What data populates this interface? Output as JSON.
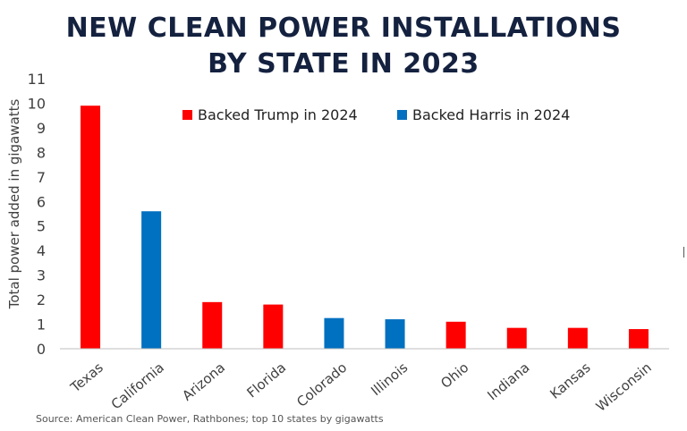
{
  "title": {
    "line1": "NEW CLEAN POWER INSTALLATIONS",
    "line2": "BY STATE IN 2023"
  },
  "source": "Source: American Clean Power, Rathbones; top 10 states by gigawatts",
  "colors": {
    "trump": "#ff0000",
    "harris": "#0070c0",
    "axis": "#404040",
    "title": "#14213f"
  },
  "chart_data": {
    "type": "bar",
    "title": "NEW CLEAN POWER INSTALLATIONS BY STATE IN 2023",
    "xlabel": "",
    "ylabel": "Total power added in gigawatts",
    "ylim": [
      0,
      11
    ],
    "yticks": [
      0,
      1,
      2,
      3,
      4,
      5,
      6,
      7,
      8,
      9,
      10,
      11
    ],
    "categories": [
      "Texas",
      "California",
      "Arizona",
      "Florida",
      "Colorado",
      "Illinois",
      "Ohio",
      "Indiana",
      "Kansas",
      "Wisconsin"
    ],
    "values": [
      9.9,
      5.6,
      1.9,
      1.8,
      1.25,
      1.2,
      1.1,
      0.85,
      0.85,
      0.8
    ],
    "groups": [
      "trump",
      "harris",
      "trump",
      "trump",
      "harris",
      "harris",
      "trump",
      "trump",
      "trump",
      "trump"
    ],
    "legend": [
      {
        "key": "trump",
        "label": "Backed Trump in 2024"
      },
      {
        "key": "harris",
        "label": "Backed Harris in 2024"
      }
    ],
    "legend_position": "top-right",
    "grid": false
  }
}
